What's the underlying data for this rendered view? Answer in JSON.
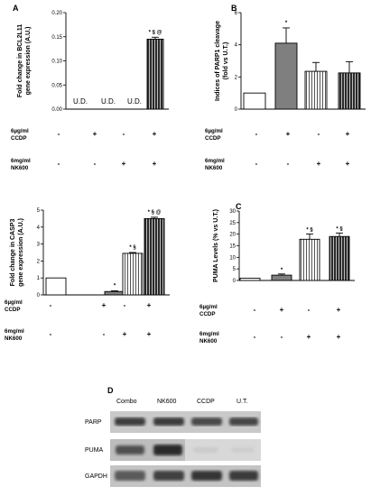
{
  "treatment_rows": {
    "ccdp": {
      "label_line1": "6µg/ml",
      "label_line2": "CCDP",
      "signs": [
        "-",
        "+",
        "-",
        "+"
      ]
    },
    "nk600": {
      "label_line1": "6mg/ml",
      "label_line2": "NK600",
      "signs": [
        "-",
        "-",
        "+",
        "+"
      ]
    }
  },
  "colors": {
    "axis": "#000000",
    "bar_dark": "#3a3a3a",
    "bar_gray": "#7f7f7f",
    "bar_white": "#ffffff"
  },
  "chart_data": [
    {
      "panel": "A",
      "type": "bar",
      "ylabel_line1": "Fold change in BCL2L11",
      "ylabel_line2": "gene expression (A.U.)",
      "ylim": [
        0,
        0.2
      ],
      "yticks": [
        "0.00",
        "0.05",
        "0.10",
        "0.15",
        "0.20"
      ],
      "ytick_values": [
        0,
        0.05,
        0.1,
        0.15,
        0.2
      ],
      "values": [
        0,
        0,
        0,
        0.145
      ],
      "errors": [
        0,
        0,
        0,
        0.004
      ],
      "annotations": [
        "U.D.",
        "U.D.",
        "U.D.",
        "* § @"
      ],
      "fills": [
        "white",
        "white",
        "white",
        "stripe"
      ]
    },
    {
      "panel": "B",
      "type": "bar",
      "ylabel_line1": "Indices of PARP1 cleavage",
      "ylabel_line2": "(fold vs U.T.)",
      "ylim": [
        0,
        6
      ],
      "yticks": [
        "0",
        "2",
        "4",
        "6"
      ],
      "ytick_values": [
        0,
        2,
        4,
        6
      ],
      "values": [
        1.0,
        4.1,
        2.35,
        2.25
      ],
      "errors": [
        0,
        0.95,
        0.55,
        0.7
      ],
      "annotations": [
        "",
        "*",
        "",
        ""
      ],
      "fills": [
        "white",
        "gray",
        "hatch",
        "stripe"
      ]
    },
    {
      "panel": "",
      "type": "bar",
      "ylabel_line1": "Fold change in CASP3",
      "ylabel_line2": "gene expression (A.U.)",
      "ylim": [
        0,
        5
      ],
      "yticks": [
        "0",
        "1",
        "2",
        "3",
        "4",
        "5"
      ],
      "ytick_values": [
        0,
        1,
        2,
        3,
        4,
        5
      ],
      "values": [
        1.0,
        0.2,
        2.45,
        4.5
      ],
      "errors": [
        0,
        0.04,
        0.05,
        0.08
      ],
      "annotations": [
        "",
        "*",
        "* §",
        "* § @"
      ],
      "fills": [
        "white",
        "gray",
        "hatch",
        "stripe"
      ]
    },
    {
      "panel": "C",
      "type": "bar",
      "ylabel_line1": "PUMA Levels (% vs U.T.)",
      "ylabel_line2": "",
      "ylim": [
        0,
        30
      ],
      "yticks": [
        "0",
        "5",
        "10",
        "15",
        "20",
        "25",
        "30"
      ],
      "ytick_values": [
        0,
        5,
        10,
        15,
        20,
        25,
        30
      ],
      "values": [
        1.0,
        2.3,
        17.8,
        19.0
      ],
      "errors": [
        0,
        0.5,
        2.3,
        1.5
      ],
      "annotations": [
        "",
        "*",
        "* §",
        "* §"
      ],
      "fills": [
        "white",
        "gray",
        "hatch",
        "stripe"
      ]
    }
  ],
  "blot": {
    "panel": "D",
    "columns": [
      "Combo",
      "NK600",
      "CCDP",
      "U.T."
    ],
    "rows": [
      "PARP",
      "PUMA",
      "GAPDH"
    ]
  }
}
